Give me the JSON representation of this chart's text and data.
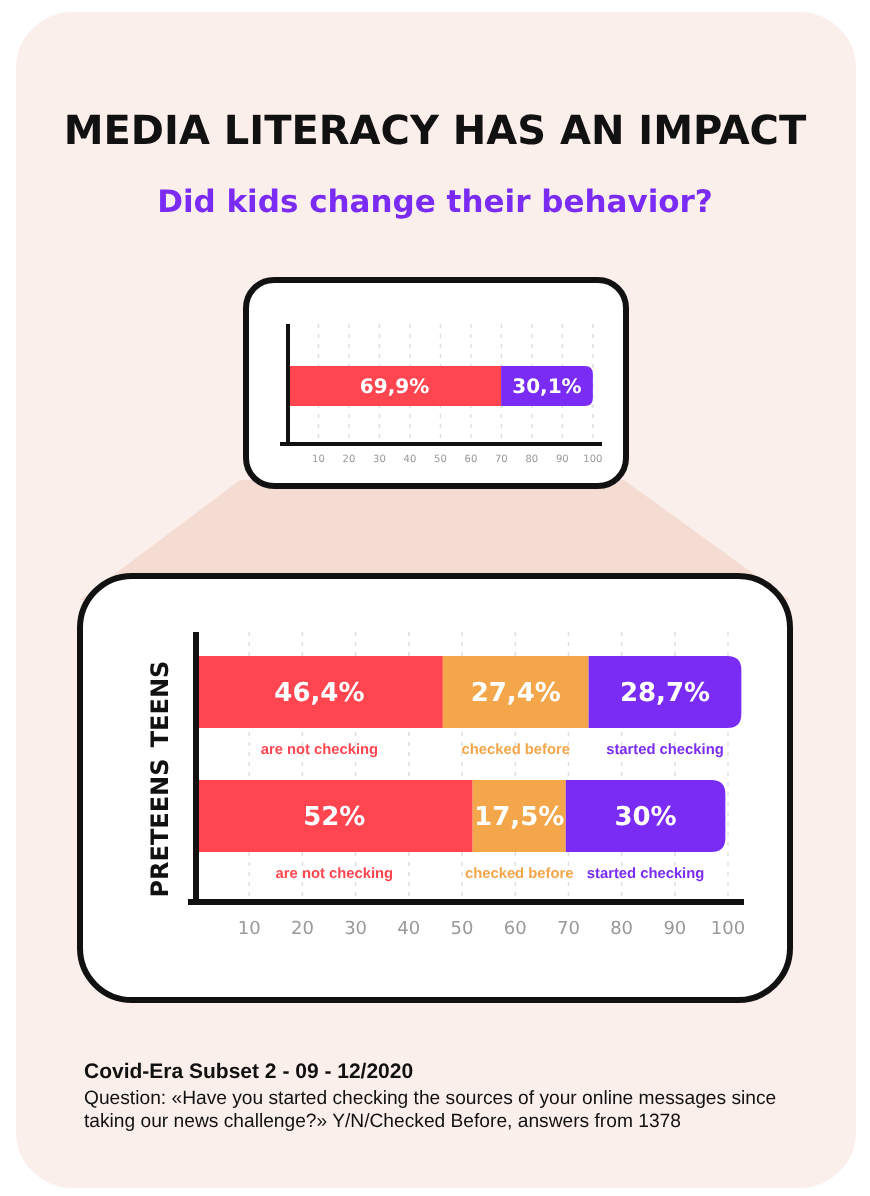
{
  "chart_data": [
    {
      "type": "bar",
      "title": "MEDIA LITERACY HAS AN IMPACT",
      "subtitle": "Did kids change their behavior?",
      "orientation": "horizontal",
      "stacked": true,
      "categories": [
        null
      ],
      "series": [
        {
          "color": "#ff4650",
          "values": [
            69.9
          ],
          "value_labels": [
            "69,9%"
          ]
        },
        {
          "color": "#7a2cf5",
          "values": [
            30.1
          ],
          "value_labels": [
            "30,1%"
          ]
        }
      ],
      "xlim": [
        0,
        103
      ],
      "xticks": [
        10,
        20,
        30,
        40,
        50,
        60,
        70,
        80,
        90,
        100
      ],
      "grid": "x"
    },
    {
      "type": "bar",
      "orientation": "horizontal",
      "stacked": true,
      "categories": [
        "TEENS",
        "PRETEENS"
      ],
      "series": [
        {
          "name": "are not checking",
          "color": "#ff4650",
          "values": [
            46.4,
            52
          ],
          "value_labels": [
            "46,4%",
            "52%"
          ]
        },
        {
          "name": "checked before",
          "color": "#f4a64a",
          "values": [
            27.4,
            17.5
          ],
          "value_labels": [
            "27,4%",
            "17,5%"
          ]
        },
        {
          "name": "started checking",
          "color": "#7a2cf5",
          "values": [
            28.7,
            30
          ],
          "value_labels": [
            "28,7%",
            "30%"
          ]
        }
      ],
      "xlim": [
        0,
        103
      ],
      "xticks": [
        10,
        20,
        30,
        40,
        50,
        60,
        70,
        80,
        90,
        100
      ],
      "grid": "x",
      "annotations": [
        "Covid-Era Subset 2 - 09 - 12/2020",
        "Question: «Have you started checking the sources of your online messages since taking our news challenge?» Y/N/Checked Before, answers from 1378"
      ]
    }
  ]
}
